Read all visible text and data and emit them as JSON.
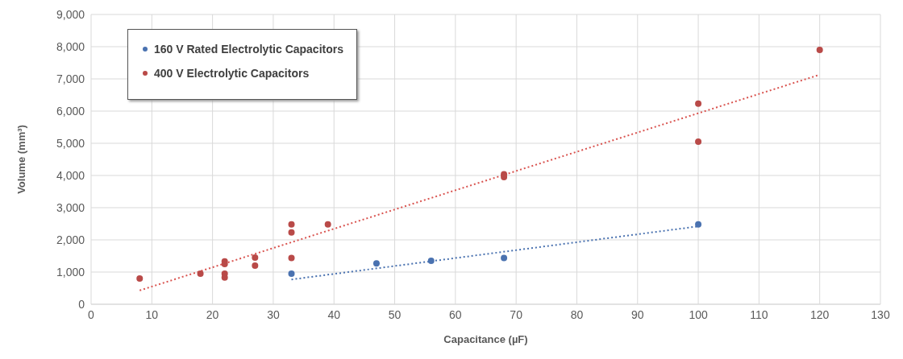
{
  "chart_data": {
    "type": "scatter",
    "xlabel": "Capacitance (µF)",
    "ylabel": "Volume (mm³)",
    "xlim": [
      0,
      130
    ],
    "xticks": [
      0,
      10,
      20,
      30,
      40,
      50,
      60,
      70,
      80,
      90,
      100,
      110,
      120,
      130
    ],
    "ylim": [
      0,
      9000
    ],
    "yticks": [
      {
        "value": 0,
        "label": "0"
      },
      {
        "value": 1000,
        "label": "1,000"
      },
      {
        "value": 2000,
        "label": "2,000"
      },
      {
        "value": 3000,
        "label": "3,000"
      },
      {
        "value": 4000,
        "label": "4,000"
      },
      {
        "value": 5000,
        "label": "5,000"
      },
      {
        "value": 6000,
        "label": "6,000"
      },
      {
        "value": 7000,
        "label": "7,000"
      },
      {
        "value": 8000,
        "label": "8,000"
      },
      {
        "value": 9000,
        "label": "9,000"
      }
    ],
    "grid": true,
    "legend": "top left",
    "marker": "circle",
    "series": [
      {
        "name": "160 V Rated Electrolytic Capacitors",
        "color": "#4a72b0",
        "x": [
          33,
          47,
          56,
          68,
          100
        ],
        "values": [
          950,
          1270,
          1350,
          1440,
          2480
        ]
      },
      {
        "name": "400 V Electrolytic Capacitors",
        "color": "#b94a48",
        "x": [
          8,
          18,
          22,
          22,
          22,
          22,
          27,
          27,
          33,
          33,
          33,
          39,
          68,
          68,
          100,
          100,
          120
        ],
        "values": [
          800,
          950,
          1330,
          1250,
          950,
          830,
          1450,
          1200,
          2480,
          2230,
          1440,
          2480,
          4040,
          3950,
          6230,
          5050,
          7900
        ]
      },
      {
        "type": "line",
        "color": "#4a72b0",
        "x": [
          33,
          100
        ],
        "values": [
          770,
          2420
        ],
        "line_style": "dotted",
        "marker": "none"
      },
      {
        "type": "line",
        "color": "#d9534f",
        "x": [
          8,
          120
        ],
        "values": [
          430,
          7130
        ],
        "line_style": "dotted",
        "marker": "none"
      }
    ]
  }
}
